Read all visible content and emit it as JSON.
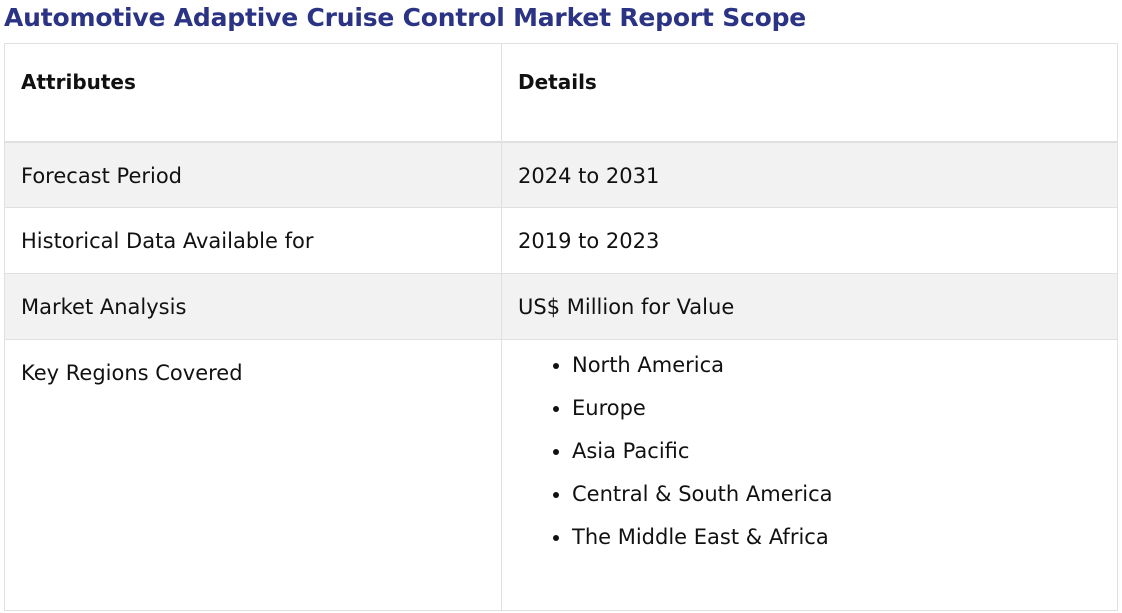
{
  "title": "Automotive Adaptive Cruise Control Market Report Scope",
  "table": {
    "headers": [
      "Attributes",
      "Details"
    ],
    "rows": [
      {
        "attribute": "Forecast Period",
        "detail": "2024 to 2031"
      },
      {
        "attribute": "Historical Data Available for",
        "detail": "2019 to 2023"
      },
      {
        "attribute": "Market Analysis",
        "detail": "US$ Million for Value"
      }
    ],
    "regions": {
      "attribute": "Key Regions Covered",
      "items": [
        "North America",
        "Europe",
        "Asia Pacific",
        "Central & South America",
        "The Middle East & Africa"
      ]
    }
  },
  "colors": {
    "title": "#2b3384",
    "shaded_row": "#f2f2f2",
    "border": "#e0e0e0"
  }
}
